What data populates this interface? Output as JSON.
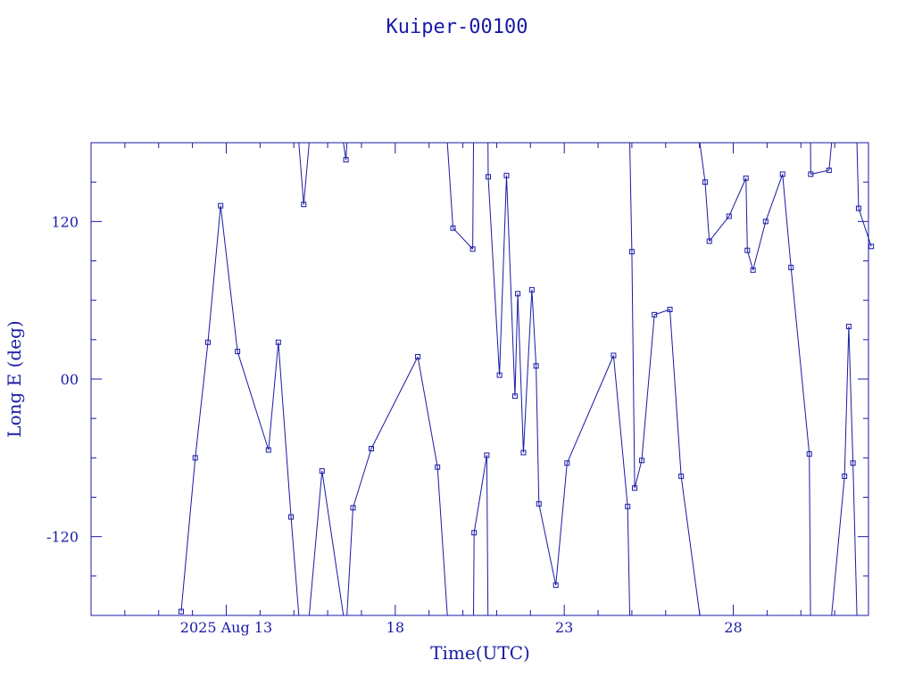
{
  "colors": {
    "ink": "#1a1aa6",
    "line": "#1a1aa6",
    "background": "#ffffff"
  },
  "chart_data": {
    "type": "line",
    "title": "Kuiper-00100",
    "xlabel": "Time(UTC)",
    "ylabel": "Long E (deg)",
    "xlim": [
      "2025-08-09",
      "2025-09-01"
    ],
    "ylim": [
      -180,
      180
    ],
    "x_ticks": [
      {
        "label": "2025 Aug 13",
        "value": "2025-08-13"
      },
      {
        "label": "18",
        "value": "2025-08-18"
      },
      {
        "label": "23",
        "value": "2025-08-23"
      },
      {
        "label": "28",
        "value": "2025-08-28"
      }
    ],
    "y_ticks": [
      {
        "label": "120",
        "value": 120
      },
      {
        "label": "00",
        "value": 0
      },
      {
        "label": "-120",
        "value": -120
      }
    ],
    "grid": false,
    "legend": "none",
    "marker": "square",
    "wrap": true,
    "series": [
      {
        "points": [
          {
            "x": "2025-08-11T16:00",
            "y": -177
          },
          {
            "x": "2025-08-12T02:00",
            "y": -60
          },
          {
            "x": "2025-08-12T11:00",
            "y": 28
          },
          {
            "x": "2025-08-12T20:00",
            "y": 132
          },
          {
            "x": "2025-08-13T08:00",
            "y": 21
          },
          {
            "x": "2025-08-14T06:00",
            "y": -54
          },
          {
            "x": "2025-08-14T13:00",
            "y": 28
          },
          {
            "x": "2025-08-14T22:00",
            "y": -105
          },
          {
            "x": "2025-08-15T07:00",
            "y": 133
          },
          {
            "x": "2025-08-15T20:00",
            "y": -70
          },
          {
            "x": "2025-08-16T13:00",
            "y": 167
          },
          {
            "x": "2025-08-16T18:00",
            "y": -98
          },
          {
            "x": "2025-08-17T07:00",
            "y": -53
          },
          {
            "x": "2025-08-18T16:00",
            "y": 17
          },
          {
            "x": "2025-08-19T06:00",
            "y": -67
          },
          {
            "x": "2025-08-19T17:00",
            "y": 115
          },
          {
            "x": "2025-08-20T07:00",
            "y": 99
          },
          {
            "x": "2025-08-20T08:00",
            "y": -117
          },
          {
            "x": "2025-08-20T17:00",
            "y": -58
          },
          {
            "x": "2025-08-20T18:00",
            "y": 154
          },
          {
            "x": "2025-08-21T02:00",
            "y": 3
          },
          {
            "x": "2025-08-21T07:00",
            "y": 155
          },
          {
            "x": "2025-08-21T13:00",
            "y": -13
          },
          {
            "x": "2025-08-21T15:00",
            "y": 65
          },
          {
            "x": "2025-08-21T19:00",
            "y": -56
          },
          {
            "x": "2025-08-22T01:00",
            "y": 68
          },
          {
            "x": "2025-08-22T04:00",
            "y": 10
          },
          {
            "x": "2025-08-22T06:00",
            "y": -95
          },
          {
            "x": "2025-08-22T18:00",
            "y": -157
          },
          {
            "x": "2025-08-23T02:00",
            "y": -64
          },
          {
            "x": "2025-08-24T11:00",
            "y": 18
          },
          {
            "x": "2025-08-24T21:00",
            "y": -97
          },
          {
            "x": "2025-08-25T00:00",
            "y": 97
          },
          {
            "x": "2025-08-25T02:00",
            "y": -83
          },
          {
            "x": "2025-08-25T07:00",
            "y": -62
          },
          {
            "x": "2025-08-25T16:00",
            "y": 49
          },
          {
            "x": "2025-08-26T03:00",
            "y": 53
          },
          {
            "x": "2025-08-26T11:00",
            "y": -74
          },
          {
            "x": "2025-08-27T04:00",
            "y": 150
          },
          {
            "x": "2025-08-27T07:00",
            "y": 105
          },
          {
            "x": "2025-08-27T21:00",
            "y": 124
          },
          {
            "x": "2025-08-28T09:00",
            "y": 153
          },
          {
            "x": "2025-08-28T10:00",
            "y": 98
          },
          {
            "x": "2025-08-28T14:00",
            "y": 83
          },
          {
            "x": "2025-08-28T23:00",
            "y": 120
          },
          {
            "x": "2025-08-29T11:00",
            "y": 156
          },
          {
            "x": "2025-08-29T17:00",
            "y": 85
          },
          {
            "x": "2025-08-30T06:00",
            "y": -57
          },
          {
            "x": "2025-08-30T07:00",
            "y": 156
          },
          {
            "x": "2025-08-30T20:00",
            "y": 159
          },
          {
            "x": "2025-08-31T07:00",
            "y": -74
          },
          {
            "x": "2025-08-31T10:00",
            "y": 40
          },
          {
            "x": "2025-08-31T13:00",
            "y": -64
          },
          {
            "x": "2025-08-31T17:00",
            "y": 130
          },
          {
            "x": "2025-09-01T02:00",
            "y": 101
          }
        ]
      }
    ]
  }
}
